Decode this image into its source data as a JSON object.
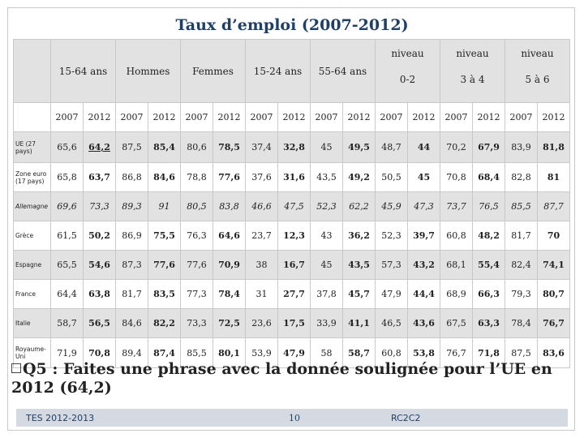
{
  "title": "Taux d’emploi (2007-2012)",
  "groups": [
    {
      "label": "15-64 ans",
      "range": ""
    },
    {
      "label": "Hommes",
      "range": ""
    },
    {
      "label": "Femmes",
      "range": ""
    },
    {
      "label": "15-24 ans",
      "range": ""
    },
    {
      "label": "55-64 ans",
      "range": ""
    },
    {
      "label": "niveau",
      "range": "0-2"
    },
    {
      "label": "niveau",
      "range": "3 à 4"
    },
    {
      "label": "niveau",
      "range": "5 à 6"
    }
  ],
  "years": [
    "2007",
    "2012"
  ],
  "rows": [
    {
      "country": "UE (27 pays)",
      "values": [
        "65,6",
        "64,2",
        "87,5",
        "85,4",
        "80,6",
        "78,5",
        "37,4",
        "32,8",
        "45",
        "49,5",
        "48,7",
        "44",
        "70,2",
        "67,9",
        "83,9",
        "81,8"
      ]
    },
    {
      "country": "Zone euro (17 pays)",
      "values": [
        "65,8",
        "63,7",
        "86,8",
        "84,6",
        "78,8",
        "77,6",
        "37,6",
        "31,6",
        "43,5",
        "49,2",
        "50,5",
        "45",
        "70,8",
        "68,4",
        "82,8",
        "81"
      ]
    },
    {
      "country": "Allemagne",
      "values": [
        "69,6",
        "73,3",
        "89,3",
        "91",
        "80,5",
        "83,8",
        "46,6",
        "47,5",
        "52,3",
        "62,2",
        "45,9",
        "47,3",
        "73,7",
        "76,5",
        "85,5",
        "87,7"
      ]
    },
    {
      "country": "Grèce",
      "values": [
        "61,5",
        "50,2",
        "86,9",
        "75,5",
        "76,3",
        "64,6",
        "23,7",
        "12,3",
        "43",
        "36,2",
        "52,3",
        "39,7",
        "60,8",
        "48,2",
        "81,7",
        "70"
      ]
    },
    {
      "country": "Espagne",
      "values": [
        "65,5",
        "54,6",
        "87,3",
        "77,6",
        "77,6",
        "70,9",
        "38",
        "16,7",
        "45",
        "43,5",
        "57,3",
        "43,2",
        "68,1",
        "55,4",
        "82,4",
        "74,1"
      ]
    },
    {
      "country": "France",
      "values": [
        "64,4",
        "63,8",
        "81,7",
        "83,5",
        "77,3",
        "78,4",
        "31",
        "27,7",
        "37,8",
        "45,7",
        "47,9",
        "44,4",
        "68,9",
        "66,3",
        "79,3",
        "80,7"
      ]
    },
    {
      "country": "Italie",
      "values": [
        "58,7",
        "56,5",
        "84,6",
        "82,2",
        "73,3",
        "72,5",
        "23,6",
        "17,5",
        "33,9",
        "41,1",
        "46,5",
        "43,6",
        "67,5",
        "63,3",
        "78,4",
        "76,7"
      ]
    },
    {
      "country": "Royaume-Uni",
      "values": [
        "71,9",
        "70,8",
        "89,4",
        "87,4",
        "85,5",
        "80,1",
        "53,9",
        "47,9",
        "58",
        "58,7",
        "60,8",
        "53,8",
        "76,7",
        "71,8",
        "87,5",
        "83,6"
      ]
    }
  ],
  "question": "Q5 : Faites une phrase avec la donnée soulignée pour l’UE en 2012 (64,2)",
  "footer": {
    "left": "TES 2012-2013",
    "page": "10",
    "right": "RC2C2"
  }
}
